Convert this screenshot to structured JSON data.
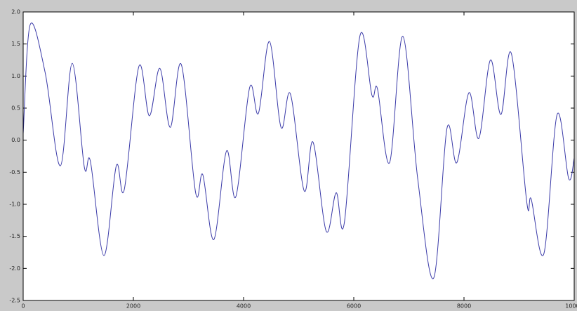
{
  "chart_data": {
    "type": "line",
    "x": [
      0,
      127,
      400,
      675,
      890,
      1110,
      1220,
      1465,
      1690,
      1835,
      2100,
      2290,
      2480,
      2670,
      2870,
      3130,
      3260,
      3460,
      3690,
      3860,
      4110,
      4270,
      4470,
      4680,
      4850,
      5100,
      5260,
      5500,
      5680,
      5830,
      6110,
      6330,
      6430,
      6650,
      6890,
      7160,
      7450,
      7690,
      7870,
      8090,
      8270,
      8480,
      8670,
      8860,
      9140,
      9220,
      9450,
      9690,
      9900,
      10000
    ],
    "series": [
      {
        "color": "#3a3aa8",
        "values": [
          0.1,
          1.8,
          1.05,
          -0.4,
          1.2,
          -0.42,
          -0.33,
          -1.8,
          -0.4,
          -0.77,
          1.15,
          0.38,
          1.12,
          0.2,
          1.18,
          -0.82,
          -0.54,
          -1.55,
          -0.17,
          -0.88,
          0.82,
          0.42,
          1.54,
          0.2,
          0.72,
          -0.79,
          -0.03,
          -1.42,
          -0.82,
          -1.28,
          1.62,
          0.7,
          0.8,
          -0.35,
          1.62,
          -0.6,
          -2.15,
          0.18,
          -0.35,
          0.74,
          0.03,
          1.25,
          0.4,
          1.35,
          -0.97,
          -0.92,
          -1.77,
          0.4,
          -0.6,
          -0.28
        ]
      }
    ],
    "xlim": [
      0,
      10000
    ],
    "xticks": [
      0,
      2000,
      4000,
      6000,
      8000,
      10000
    ],
    "ylim": [
      -2.5,
      2.0
    ],
    "yticks": [
      -2.5,
      {
        "value": -2,
        "label": "-2.0"
      },
      -1.5,
      {
        "value": -1,
        "label": "-1.0"
      },
      -0.5,
      {
        "value": 0,
        "label": "0.0"
      },
      0.5,
      {
        "value": 1,
        "label": "1.0"
      },
      1.5,
      {
        "value": 2,
        "label": "2.0"
      }
    ]
  }
}
